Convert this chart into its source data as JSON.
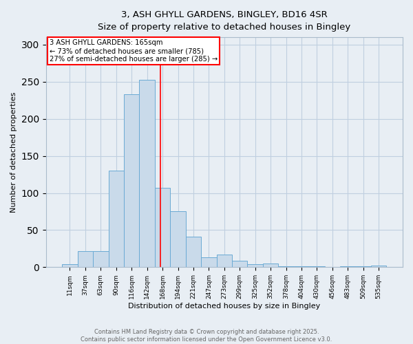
{
  "title_line1": "3, ASH GHYLL GARDENS, BINGLEY, BD16 4SR",
  "title_line2": "Size of property relative to detached houses in Bingley",
  "xlabel": "Distribution of detached houses by size in Bingley",
  "ylabel": "Number of detached properties",
  "categories": [
    "11sqm",
    "37sqm",
    "63sqm",
    "90sqm",
    "116sqm",
    "142sqm",
    "168sqm",
    "194sqm",
    "221sqm",
    "247sqm",
    "273sqm",
    "299sqm",
    "325sqm",
    "352sqm",
    "378sqm",
    "404sqm",
    "430sqm",
    "456sqm",
    "483sqm",
    "509sqm",
    "535sqm"
  ],
  "values": [
    4,
    22,
    22,
    130,
    233,
    253,
    107,
    75,
    41,
    13,
    17,
    9,
    4,
    5,
    1,
    1,
    1,
    0,
    1,
    1,
    2
  ],
  "bar_color": "#c9daea",
  "bar_edge_color": "#6aaad4",
  "ylim": [
    0,
    310
  ],
  "yticks": [
    0,
    50,
    100,
    150,
    200,
    250,
    300
  ],
  "property_label": "3 ASH GHYLL GARDENS: 165sqm",
  "annotation_line2": "← 73% of detached houses are smaller (785)",
  "annotation_line3": "27% of semi-detached houses are larger (285) →",
  "vline_color": "red",
  "annotation_box_color": "white",
  "annotation_box_edge_color": "red",
  "footer_line1": "Contains HM Land Registry data © Crown copyright and database right 2025.",
  "footer_line2": "Contains public sector information licensed under the Open Government Licence v3.0.",
  "bg_color": "#e8eef4",
  "grid_color": "#c0cfe0",
  "vline_x_index": 5.88
}
